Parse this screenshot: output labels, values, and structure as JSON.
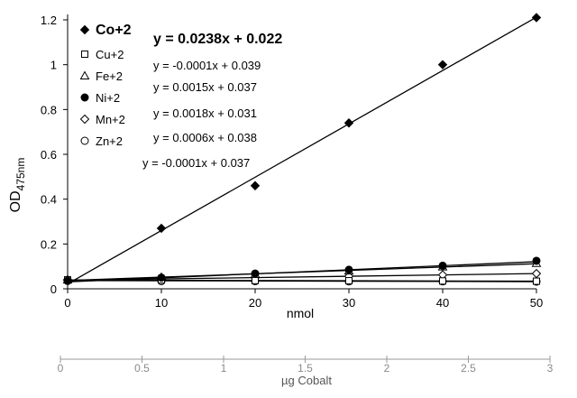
{
  "chart_data": [
    {
      "type": "scatter",
      "xlabel": "nmol",
      "ylabel": "OD",
      "ylabel_subscript": "475nm",
      "xlim": [
        0,
        50
      ],
      "ylim": [
        0,
        1.2
      ],
      "x_ticks": [
        "0",
        "10",
        "20",
        "30",
        "40",
        "50"
      ],
      "y_ticks": [
        "0",
        "0.2",
        "0.4",
        "0.6",
        "0.8",
        "1",
        "1.2"
      ],
      "trendlines": true,
      "legend_position": "top-left",
      "series": [
        {
          "name": "Co+2",
          "marker": "filled-diamond",
          "equation": "y = 0.0238x + 0.022",
          "slope": 0.0238,
          "intercept": 0.022,
          "x": [
            0,
            10,
            20,
            30,
            40,
            50
          ],
          "y": [
            0.04,
            0.27,
            0.46,
            0.74,
            1.0,
            1.21
          ]
        },
        {
          "name": "Cu+2",
          "marker": "open-square",
          "equation": "y = -0.0001x + 0.039",
          "slope": -0.0001,
          "intercept": 0.039,
          "x": [
            0,
            10,
            20,
            30,
            40,
            50
          ],
          "y": [
            0.04,
            0.04,
            0.037,
            0.036,
            0.035,
            0.034
          ]
        },
        {
          "name": "Fe+2",
          "marker": "open-triangle",
          "equation": "y = 0.0015x + 0.037",
          "slope": 0.0015,
          "intercept": 0.037,
          "x": [
            0,
            10,
            20,
            30,
            40,
            50
          ],
          "y": [
            0.04,
            0.052,
            0.065,
            0.08,
            0.098,
            0.114
          ]
        },
        {
          "name": "Ni+2",
          "marker": "filled-circle",
          "equation": "y = 0.0018x + 0.031",
          "slope": 0.0018,
          "intercept": 0.031,
          "x": [
            0,
            10,
            20,
            30,
            40,
            50
          ],
          "y": [
            0.035,
            0.05,
            0.068,
            0.085,
            0.103,
            0.125
          ]
        },
        {
          "name": "Mn+2",
          "marker": "open-diamond",
          "equation": "y = 0.0006x + 0.038",
          "slope": 0.0006,
          "intercept": 0.038,
          "x": [
            0,
            10,
            20,
            30,
            40,
            50
          ],
          "y": [
            0.04,
            0.042,
            0.05,
            0.056,
            0.062,
            0.068
          ]
        },
        {
          "name": "Zn+2",
          "marker": "open-circle",
          "equation": "y = -0.0001x + 0.037",
          "slope": -0.0001,
          "intercept": 0.037,
          "x": [
            0,
            10,
            20,
            30,
            40,
            50
          ],
          "y": [
            0.037,
            0.034,
            0.034,
            0.033,
            0.033,
            0.032
          ]
        }
      ]
    },
    {
      "type": "axis",
      "xlabel": "µg Cobalt",
      "xlim": [
        0,
        3
      ],
      "x_ticks": [
        "0",
        "0.5",
        "1",
        "1.5",
        "2",
        "2.5",
        "3"
      ]
    }
  ]
}
